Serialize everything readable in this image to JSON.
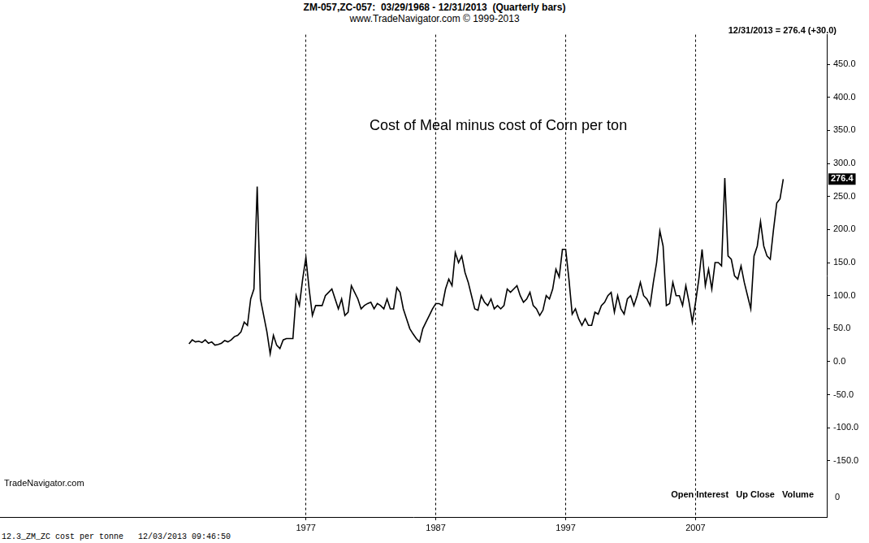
{
  "chart_data": {
    "type": "line",
    "header": [
      "ZM-057,ZC-057:  03/29/1968 - 12/31/2013  (Quarterly bars)",
      "www.TradeNavigator.com © 1999-2013"
    ],
    "corner_text": "12/31/2013 = 276.4 (+30.0)",
    "title": "Cost of Meal minus cost of Corn per ton",
    "watermark": "TradeNavigator.com",
    "indicator_labels": [
      "Open Interest",
      "Up Close",
      "Volume"
    ],
    "volume_axis_label": "0",
    "footer": [
      "12.3_ZM_ZC cost per tonne",
      "12/03/2013 09:46:50"
    ],
    "last_value": {
      "value": 276.4,
      "label": "276.4"
    },
    "x": [
      1968,
      1968.25,
      1968.5,
      1968.75,
      1969,
      1969.25,
      1969.5,
      1969.75,
      1970,
      1970.25,
      1970.5,
      1970.75,
      1971,
      1971.25,
      1971.5,
      1971.75,
      1972,
      1972.25,
      1972.5,
      1972.75,
      1973,
      1973.25,
      1973.5,
      1973.75,
      1974,
      1974.25,
      1974.5,
      1974.75,
      1975,
      1975.25,
      1975.5,
      1975.75,
      1976,
      1976.25,
      1976.5,
      1976.75,
      1977,
      1977.25,
      1977.5,
      1977.75,
      1978,
      1978.25,
      1978.5,
      1978.75,
      1979,
      1979.25,
      1979.5,
      1979.75,
      1980,
      1980.25,
      1980.5,
      1980.75,
      1981,
      1981.25,
      1981.5,
      1981.75,
      1982,
      1982.25,
      1982.5,
      1982.75,
      1983,
      1983.25,
      1983.5,
      1983.75,
      1984,
      1984.25,
      1984.5,
      1984.75,
      1985,
      1985.25,
      1985.5,
      1985.75,
      1986,
      1986.25,
      1986.5,
      1986.75,
      1987,
      1987.25,
      1987.5,
      1987.75,
      1988,
      1988.25,
      1988.5,
      1988.75,
      1989,
      1989.25,
      1989.5,
      1989.75,
      1990,
      1990.25,
      1990.5,
      1990.75,
      1991,
      1991.25,
      1991.5,
      1991.75,
      1992,
      1992.25,
      1992.5,
      1992.75,
      1993,
      1993.25,
      1993.5,
      1993.75,
      1994,
      1994.25,
      1994.5,
      1994.75,
      1995,
      1995.25,
      1995.5,
      1995.75,
      1996,
      1996.25,
      1996.5,
      1996.75,
      1997,
      1997.25,
      1997.5,
      1997.75,
      1998,
      1998.25,
      1998.5,
      1998.75,
      1999,
      1999.25,
      1999.5,
      1999.75,
      2000,
      2000.25,
      2000.5,
      2000.75,
      2001,
      2001.25,
      2001.5,
      2001.75,
      2002,
      2002.25,
      2002.5,
      2002.75,
      2003,
      2003.25,
      2003.5,
      2003.75,
      2004,
      2004.25,
      2004.5,
      2004.75,
      2005,
      2005.25,
      2005.5,
      2005.75,
      2006,
      2006.25,
      2006.5,
      2006.75,
      2007,
      2007.25,
      2007.5,
      2007.75,
      2008,
      2008.25,
      2008.5,
      2008.75,
      2009,
      2009.25,
      2009.5,
      2009.75,
      2010,
      2010.25,
      2010.5,
      2010.75,
      2011,
      2011.25,
      2011.5,
      2011.75,
      2012,
      2012.25,
      2012.5,
      2012.75,
      2013,
      2013.25,
      2013.5,
      2013.75
    ],
    "values": [
      27,
      33,
      30,
      31,
      29,
      33,
      28,
      30,
      25,
      26,
      28,
      32,
      30,
      33,
      38,
      40,
      45,
      60,
      55,
      95,
      110,
      265,
      95,
      70,
      45,
      12,
      40,
      25,
      20,
      33,
      35,
      35,
      35,
      100,
      85,
      125,
      158,
      110,
      70,
      85,
      85,
      85,
      100,
      105,
      110,
      95,
      80,
      95,
      70,
      75,
      115,
      105,
      95,
      80,
      85,
      88,
      90,
      80,
      88,
      85,
      80,
      95,
      80,
      80,
      112,
      105,
      80,
      65,
      50,
      42,
      35,
      30,
      50,
      60,
      70,
      80,
      88,
      88,
      85,
      110,
      125,
      115,
      165,
      150,
      160,
      135,
      120,
      100,
      80,
      78,
      100,
      90,
      85,
      95,
      80,
      85,
      80,
      85,
      110,
      105,
      110,
      115,
      100,
      90,
      95,
      105,
      85,
      80,
      70,
      78,
      100,
      95,
      110,
      140,
      128,
      170,
      170,
      125,
      72,
      80,
      65,
      55,
      65,
      55,
      55,
      75,
      72,
      85,
      90,
      100,
      105,
      75,
      100,
      80,
      72,
      95,
      100,
      85,
      100,
      120,
      100,
      95,
      85,
      120,
      150,
      198,
      175,
      85,
      88,
      120,
      100,
      100,
      85,
      115,
      90,
      60,
      90,
      125,
      170,
      115,
      140,
      110,
      150,
      150,
      145,
      278,
      160,
      155,
      130,
      125,
      145,
      120,
      100,
      80,
      160,
      175,
      212,
      175,
      160,
      155,
      200,
      240,
      246.4,
      276.4
    ],
    "color": "#000000",
    "xlim": [
      1953.5,
      2017.1
    ],
    "xticks": [
      1977,
      1987,
      1997,
      2007
    ],
    "ylim": [
      -235,
      495
    ],
    "yticks": [
      {
        "value": -150,
        "label": "-150.0"
      },
      {
        "value": -100,
        "label": "-100.0"
      },
      {
        "value": -50,
        "label": "-50.0"
      },
      {
        "value": 0,
        "label": "0.0"
      },
      {
        "value": 50,
        "label": "50.0"
      },
      {
        "value": 100,
        "label": "100.0"
      },
      {
        "value": 150,
        "label": "150.0"
      },
      {
        "value": 200,
        "label": "200.0"
      },
      {
        "value": 250,
        "label": "250.0"
      },
      {
        "value": 300,
        "label": "300.0"
      },
      {
        "value": 350,
        "label": "350.0"
      },
      {
        "value": 400,
        "label": "400.0"
      },
      {
        "value": 450,
        "label": "450.0"
      }
    ],
    "grid": true,
    "legend": false,
    "line_style": "solid"
  }
}
